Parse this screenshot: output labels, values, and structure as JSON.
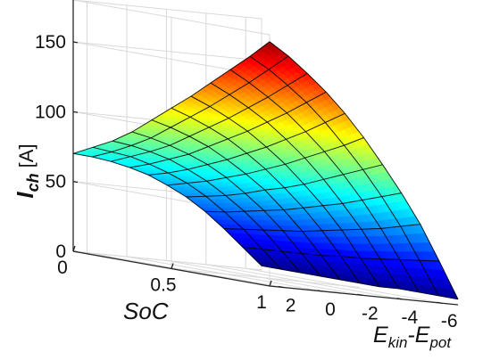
{
  "chart_data": {
    "type": "surface",
    "title": "",
    "zlabel": {
      "main": "I",
      "sub": "ch",
      "unit": "[A]"
    },
    "xlabel": "SoC",
    "ylabel": {
      "a": "E",
      "a_sub": "kin",
      "sep": "-",
      "b": "E",
      "b_sub": "pot"
    },
    "x_ticks": [
      "0",
      "0.5",
      "1"
    ],
    "y_ticks": [
      "2",
      "0",
      "-2",
      "-4",
      "-6"
    ],
    "z_ticks": [
      "0",
      "50",
      "100",
      "150"
    ],
    "x_range": [
      0,
      1
    ],
    "y_range": [
      2.7,
      -6.8
    ],
    "z_range": [
      0,
      180
    ],
    "grid": true,
    "colormap": "jet",
    "surface": {
      "SoC": [
        0,
        0.1,
        0.2,
        0.3,
        0.4,
        0.5,
        0.6,
        0.7,
        0.8,
        0.9,
        1.0
      ],
      "E_kin_minus_E_pot": [
        2.7,
        1.75,
        0.8,
        -0.15,
        -1.1,
        -2.05,
        -3.0,
        -3.95,
        -4.9,
        -5.85,
        -6.8
      ],
      "I_ch": [
        [
          70,
          77,
          84,
          93,
          104,
          115,
          126,
          138,
          150,
          162,
          175
        ],
        [
          69,
          75,
          82,
          90,
          100,
          110,
          120,
          131,
          142,
          154,
          166
        ],
        [
          67,
          73,
          79,
          86,
          95,
          104,
          113,
          123,
          133,
          144,
          155
        ],
        [
          64,
          69,
          75,
          81,
          89,
          97,
          105,
          114,
          123,
          133,
          143
        ],
        [
          60,
          64,
          69,
          75,
          81,
          88,
          95,
          103,
          111,
          120,
          129
        ],
        [
          54,
          58,
          62,
          67,
          72,
          78,
          84,
          91,
          98,
          105,
          113
        ],
        [
          47,
          50,
          53,
          57,
          62,
          66,
          71,
          77,
          83,
          89,
          95
        ],
        [
          38,
          40,
          43,
          46,
          49,
          53,
          57,
          61,
          66,
          71,
          76
        ],
        [
          27,
          29,
          31,
          33,
          35,
          38,
          41,
          44,
          47,
          51,
          55
        ],
        [
          15,
          16,
          17,
          18,
          19,
          21,
          22,
          24,
          26,
          28,
          30
        ],
        [
          3,
          3,
          3,
          3,
          3,
          3,
          3,
          4,
          4,
          4,
          4
        ]
      ]
    }
  }
}
